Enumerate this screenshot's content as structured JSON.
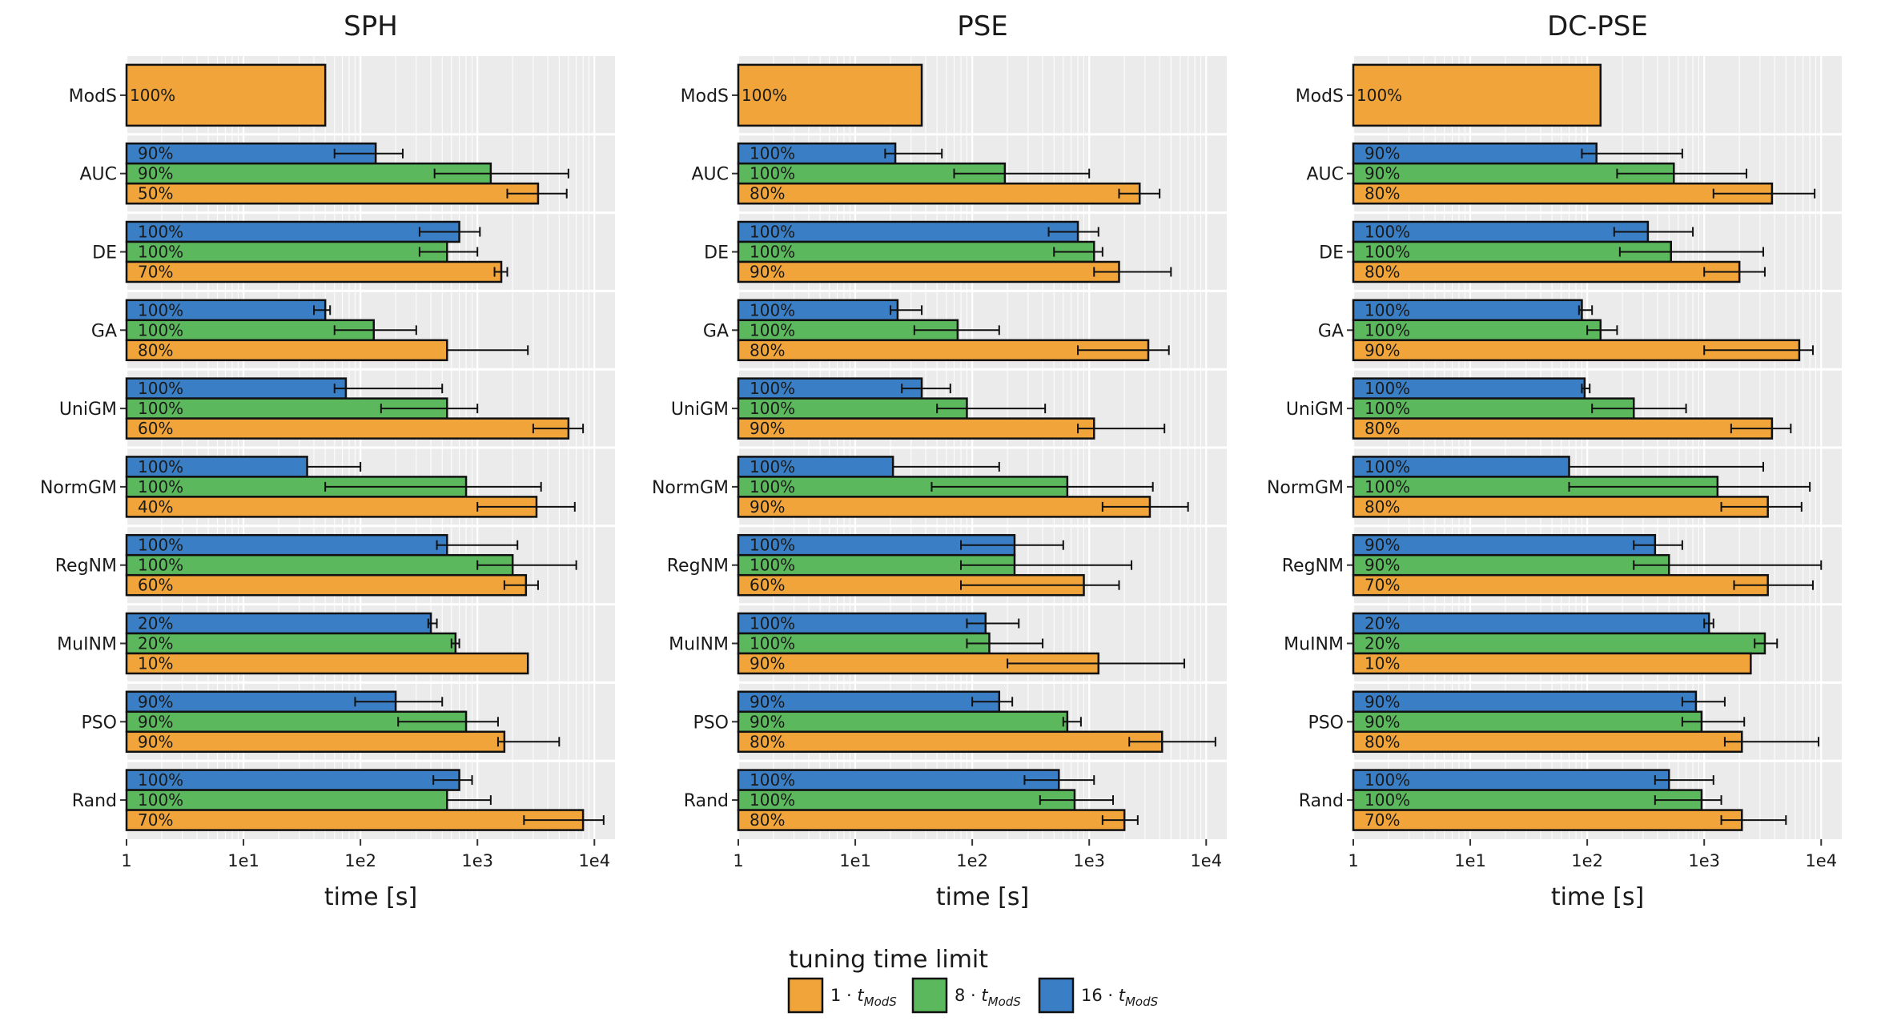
{
  "colors": {
    "t1": "#f0a43a",
    "t8": "#5cb85c",
    "t16": "#3a7fc6",
    "panel_bg": "#ebebeb",
    "grid": "#ffffff"
  },
  "legend": {
    "title": "tuning time limit",
    "items": [
      {
        "key": "t1",
        "label": "1 · t_ModS",
        "base": "1 · ",
        "var": "t",
        "sub": "ModS",
        "color": "#f0a43a"
      },
      {
        "key": "t8",
        "label": "8 · t_ModS",
        "base": "8 · ",
        "var": "t",
        "sub": "ModS",
        "color": "#5cb85c"
      },
      {
        "key": "t16",
        "label": "16 · t_ModS",
        "base": "16 · ",
        "var": "t",
        "sub": "ModS",
        "color": "#3a7fc6"
      }
    ]
  },
  "chart_data": [
    {
      "type": "bar",
      "orientation": "horizontal",
      "title": "SPH",
      "xlabel": "time [s]",
      "xscale": "log",
      "xlim": [
        1,
        15000
      ],
      "xticks": [
        "1",
        "1e1",
        "1e2",
        "1e3",
        "1e4"
      ],
      "categories": [
        "ModS",
        "AUC",
        "DE",
        "GA",
        "UniGM",
        "NormGM",
        "RegNM",
        "MuINM",
        "PSO",
        "Rand"
      ],
      "bars": [
        [
          {
            "series": "t1",
            "value": 50,
            "err": [
              50,
              50
            ],
            "label": "100%"
          }
        ],
        [
          {
            "series": "t16",
            "value": 135,
            "err": [
              60,
              230
            ],
            "label": "90%"
          },
          {
            "series": "t8",
            "value": 1300,
            "err": [
              430,
              6000
            ],
            "label": "90%"
          },
          {
            "series": "t1",
            "value": 3300,
            "err": [
              1800,
              5800
            ],
            "label": "50%"
          }
        ],
        [
          {
            "series": "t16",
            "value": 700,
            "err": [
              320,
              1050
            ],
            "label": "100%"
          },
          {
            "series": "t8",
            "value": 550,
            "err": [
              320,
              1000
            ],
            "label": "100%"
          },
          {
            "series": "t1",
            "value": 1600,
            "err": [
              1400,
              1800
            ],
            "label": "70%"
          }
        ],
        [
          {
            "series": "t16",
            "value": 50,
            "err": [
              40,
              55
            ],
            "label": "100%"
          },
          {
            "series": "t8",
            "value": 130,
            "err": [
              60,
              300
            ],
            "label": "100%"
          },
          {
            "series": "t1",
            "value": 550,
            "err": [
              550,
              2700
            ],
            "label": "80%"
          }
        ],
        [
          {
            "series": "t16",
            "value": 75,
            "err": [
              60,
              500
            ],
            "label": "100%"
          },
          {
            "series": "t8",
            "value": 550,
            "err": [
              150,
              1000
            ],
            "label": "100%"
          },
          {
            "series": "t1",
            "value": 6000,
            "err": [
              3000,
              8000
            ],
            "label": "60%"
          }
        ],
        [
          {
            "series": "t16",
            "value": 35,
            "err": [
              35,
              100
            ],
            "label": "100%"
          },
          {
            "series": "t8",
            "value": 800,
            "err": [
              50,
              3500
            ],
            "label": "100%"
          },
          {
            "series": "t1",
            "value": 3200,
            "err": [
              1000,
              6800
            ],
            "label": "40%"
          }
        ],
        [
          {
            "series": "t16",
            "value": 550,
            "err": [
              450,
              2200
            ],
            "label": "100%"
          },
          {
            "series": "t8",
            "value": 2000,
            "err": [
              1000,
              7000
            ],
            "label": "100%"
          },
          {
            "series": "t1",
            "value": 2600,
            "err": [
              1700,
              3300
            ],
            "label": "60%"
          }
        ],
        [
          {
            "series": "t16",
            "value": 400,
            "err": [
              380,
              450
            ],
            "label": "20%"
          },
          {
            "series": "t8",
            "value": 650,
            "err": [
              600,
              700
            ],
            "label": "20%"
          },
          {
            "series": "t1",
            "value": 2700,
            "err": null,
            "label": "10%"
          }
        ],
        [
          {
            "series": "t16",
            "value": 200,
            "err": [
              90,
              500
            ],
            "label": "90%"
          },
          {
            "series": "t8",
            "value": 800,
            "err": [
              210,
              1500
            ],
            "label": "90%"
          },
          {
            "series": "t1",
            "value": 1700,
            "err": [
              1500,
              5000
            ],
            "label": "90%"
          }
        ],
        [
          {
            "series": "t16",
            "value": 700,
            "err": [
              420,
              900
            ],
            "label": "100%"
          },
          {
            "series": "t8",
            "value": 550,
            "err": [
              550,
              1300
            ],
            "label": "100%"
          },
          {
            "series": "t1",
            "value": 8000,
            "err": [
              2500,
              12000
            ],
            "label": "70%"
          }
        ]
      ]
    },
    {
      "type": "bar",
      "orientation": "horizontal",
      "title": "PSE",
      "xlabel": "time [s]",
      "xscale": "log",
      "xlim": [
        1,
        15000
      ],
      "xticks": [
        "1",
        "1e1",
        "1e2",
        "1e3",
        "1e4"
      ],
      "categories": [
        "ModS",
        "AUC",
        "DE",
        "GA",
        "UniGM",
        "NormGM",
        "RegNM",
        "MuINM",
        "PSO",
        "Rand"
      ],
      "bars": [
        [
          {
            "series": "t1",
            "value": 37,
            "err": [
              37,
              37
            ],
            "label": "100%"
          }
        ],
        [
          {
            "series": "t16",
            "value": 22,
            "err": [
              18,
              55
            ],
            "label": "100%"
          },
          {
            "series": "t8",
            "value": 190,
            "err": [
              70,
              1000
            ],
            "label": "100%"
          },
          {
            "series": "t1",
            "value": 2700,
            "err": [
              1800,
              4000
            ],
            "label": "80%"
          }
        ],
        [
          {
            "series": "t16",
            "value": 800,
            "err": [
              450,
              1200
            ],
            "label": "100%"
          },
          {
            "series": "t8",
            "value": 1100,
            "err": [
              500,
              1300
            ],
            "label": "100%"
          },
          {
            "series": "t1",
            "value": 1800,
            "err": [
              1100,
              5000
            ],
            "label": "90%"
          }
        ],
        [
          {
            "series": "t16",
            "value": 23,
            "err": [
              20,
              37
            ],
            "label": "100%"
          },
          {
            "series": "t8",
            "value": 75,
            "err": [
              32,
              170
            ],
            "label": "100%"
          },
          {
            "series": "t1",
            "value": 3200,
            "err": [
              800,
              4800
            ],
            "label": "80%"
          }
        ],
        [
          {
            "series": "t16",
            "value": 37,
            "err": [
              25,
              65
            ],
            "label": "100%"
          },
          {
            "series": "t8",
            "value": 90,
            "err": [
              50,
              420
            ],
            "label": "100%"
          },
          {
            "series": "t1",
            "value": 1100,
            "err": [
              800,
              4400
            ],
            "label": "90%"
          }
        ],
        [
          {
            "series": "t16",
            "value": 21,
            "err": [
              21,
              170
            ],
            "label": "100%"
          },
          {
            "series": "t8",
            "value": 650,
            "err": [
              45,
              3500
            ],
            "label": "100%"
          },
          {
            "series": "t1",
            "value": 3300,
            "err": [
              1300,
              7000
            ],
            "label": "90%"
          }
        ],
        [
          {
            "series": "t16",
            "value": 230,
            "err": [
              80,
              600
            ],
            "label": "100%"
          },
          {
            "series": "t8",
            "value": 230,
            "err": [
              80,
              2300
            ],
            "label": "100%"
          },
          {
            "series": "t1",
            "value": 900,
            "err": [
              80,
              1800
            ],
            "label": "60%"
          }
        ],
        [
          {
            "series": "t16",
            "value": 130,
            "err": [
              90,
              250
            ],
            "label": "100%"
          },
          {
            "series": "t8",
            "value": 140,
            "err": [
              90,
              400
            ],
            "label": "100%"
          },
          {
            "series": "t1",
            "value": 1200,
            "err": [
              200,
              6500
            ],
            "label": "90%"
          }
        ],
        [
          {
            "series": "t16",
            "value": 170,
            "err": [
              100,
              220
            ],
            "label": "90%"
          },
          {
            "series": "t8",
            "value": 650,
            "err": [
              600,
              850
            ],
            "label": "90%"
          },
          {
            "series": "t1",
            "value": 4200,
            "err": [
              2200,
              12000
            ],
            "label": "80%"
          }
        ],
        [
          {
            "series": "t16",
            "value": 550,
            "err": [
              280,
              1100
            ],
            "label": "100%"
          },
          {
            "series": "t8",
            "value": 750,
            "err": [
              380,
              1600
            ],
            "label": "100%"
          },
          {
            "series": "t1",
            "value": 2000,
            "err": [
              1300,
              2600
            ],
            "label": "80%"
          }
        ]
      ]
    },
    {
      "type": "bar",
      "orientation": "horizontal",
      "title": "DC-PSE",
      "xlabel": "time [s]",
      "xscale": "log",
      "xlim": [
        1,
        15000
      ],
      "xticks": [
        "1",
        "1e1",
        "1e2",
        "1e3",
        "1e4"
      ],
      "categories": [
        "ModS",
        "AUC",
        "DE",
        "GA",
        "UniGM",
        "NormGM",
        "RegNM",
        "MuINM",
        "PSO",
        "Rand"
      ],
      "bars": [
        [
          {
            "series": "t1",
            "value": 130,
            "err": [
              130,
              130
            ],
            "label": "100%"
          }
        ],
        [
          {
            "series": "t16",
            "value": 120,
            "err": [
              90,
              650
            ],
            "label": "90%"
          },
          {
            "series": "t8",
            "value": 550,
            "err": [
              180,
              2300
            ],
            "label": "90%"
          },
          {
            "series": "t1",
            "value": 3800,
            "err": [
              1200,
              8800
            ],
            "label": "80%"
          }
        ],
        [
          {
            "series": "t16",
            "value": 330,
            "err": [
              170,
              800
            ],
            "label": "100%"
          },
          {
            "series": "t8",
            "value": 520,
            "err": [
              190,
              3200
            ],
            "label": "100%"
          },
          {
            "series": "t1",
            "value": 2000,
            "err": [
              1000,
              3300
            ],
            "label": "80%"
          }
        ],
        [
          {
            "series": "t16",
            "value": 90,
            "err": [
              85,
              110
            ],
            "label": "100%"
          },
          {
            "series": "t8",
            "value": 130,
            "err": [
              100,
              180
            ],
            "label": "100%"
          },
          {
            "series": "t1",
            "value": 6500,
            "err": [
              1000,
              8500
            ],
            "label": "90%"
          }
        ],
        [
          {
            "series": "t16",
            "value": 95,
            "err": [
              90,
              105
            ],
            "label": "100%"
          },
          {
            "series": "t8",
            "value": 250,
            "err": [
              110,
              700
            ],
            "label": "100%"
          },
          {
            "series": "t1",
            "value": 3800,
            "err": [
              1700,
              5500
            ],
            "label": "80%"
          }
        ],
        [
          {
            "series": "t16",
            "value": 70,
            "err": [
              70,
              3200
            ],
            "label": "100%"
          },
          {
            "series": "t8",
            "value": 1300,
            "err": [
              70,
              8000
            ],
            "label": "100%"
          },
          {
            "series": "t1",
            "value": 3500,
            "err": [
              1400,
              6800
            ],
            "label": "80%"
          }
        ],
        [
          {
            "series": "t16",
            "value": 380,
            "err": [
              250,
              650
            ],
            "label": "90%"
          },
          {
            "series": "t8",
            "value": 500,
            "err": [
              250,
              10000
            ],
            "label": "90%"
          },
          {
            "series": "t1",
            "value": 3500,
            "err": [
              1800,
              8500
            ],
            "label": "70%"
          }
        ],
        [
          {
            "series": "t16",
            "value": 1100,
            "err": [
              1000,
              1200
            ],
            "label": "20%"
          },
          {
            "series": "t8",
            "value": 3300,
            "err": [
              2700,
              4200
            ],
            "label": "20%"
          },
          {
            "series": "t1",
            "value": 2500,
            "err": null,
            "label": "10%"
          }
        ],
        [
          {
            "series": "t16",
            "value": 850,
            "err": [
              650,
              1500
            ],
            "label": "90%"
          },
          {
            "series": "t8",
            "value": 950,
            "err": [
              650,
              2200
            ],
            "label": "90%"
          },
          {
            "series": "t1",
            "value": 2100,
            "err": [
              1500,
              9500
            ],
            "label": "80%"
          }
        ],
        [
          {
            "series": "t16",
            "value": 500,
            "err": [
              380,
              1200
            ],
            "label": "100%"
          },
          {
            "series": "t8",
            "value": 950,
            "err": [
              380,
              1400
            ],
            "label": "100%"
          },
          {
            "series": "t1",
            "value": 2100,
            "err": [
              1400,
              5000
            ],
            "label": "70%"
          }
        ]
      ]
    }
  ]
}
